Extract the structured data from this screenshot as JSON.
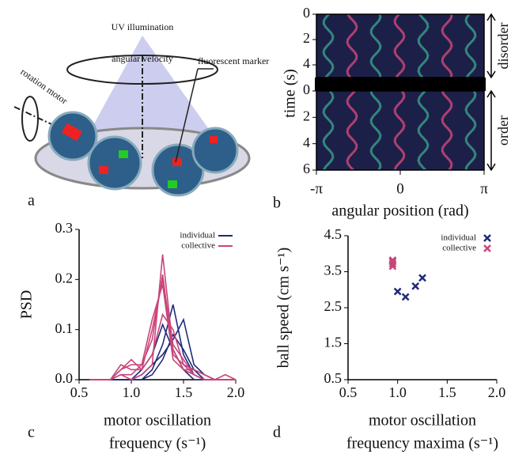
{
  "illustration": {
    "panel_label": "a",
    "texts": [
      "UV illumination",
      "angular velocity",
      "fluorescent marker",
      "rotation motor"
    ]
  },
  "chart_data": [
    {
      "type": "heatmap",
      "panel_label": "b",
      "xlabel": "angular position (rad)",
      "ylabel": "time (s)",
      "xlim": [
        -3.1416,
        3.1416
      ],
      "xticks": [
        {
          "value": -3.1416,
          "label": "-π"
        },
        0,
        {
          "value": 3.1416,
          "label": "π"
        }
      ],
      "panels": [
        {
          "label": "disorder",
          "ylim": [
            0,
            5
          ],
          "yticks": [
            0,
            2,
            4
          ]
        },
        {
          "label": "order",
          "ylim": [
            0,
            6
          ],
          "yticks": [
            0,
            2,
            4,
            6
          ]
        }
      ]
    },
    {
      "type": "line",
      "panel_label": "c",
      "ylabel": "PSD",
      "xlabel": [
        "motor oscillation",
        "frequency (s⁻¹)"
      ],
      "xlim": [
        0.5,
        2.0
      ],
      "xticks": [
        0.5,
        {
          "value": 1,
          "label": "1.0"
        },
        1.5,
        {
          "value": 2,
          "label": "2.0"
        }
      ],
      "ylim": [
        0,
        0.3
      ],
      "yticks": [
        {
          "value": 0,
          "label": "0.0"
        },
        0.1,
        0.2,
        0.3
      ],
      "legend": "upper right",
      "x": [
        0.6,
        0.7,
        0.8,
        0.9,
        1.0,
        1.1,
        1.2,
        1.3,
        1.4,
        1.5,
        1.6,
        1.7,
        1.8,
        1.9,
        2.0
      ],
      "series": [
        {
          "name": "individual",
          "color": "#1f2a7a",
          "values": [
            [
              0,
              0,
              0,
              0,
              0,
              0,
              0.02,
              0.07,
              0.15,
              0.05,
              0.01,
              0,
              0,
              0,
              0
            ],
            [
              0,
              0,
              0,
              0,
              0,
              0.01,
              0.03,
              0.05,
              0.08,
              0.12,
              0.03,
              0.01,
              0,
              0,
              0
            ],
            [
              0,
              0,
              0,
              0,
              0,
              0.02,
              0.05,
              0.11,
              0.06,
              0.02,
              0,
              0,
              0,
              0,
              0
            ],
            [
              0,
              0,
              0,
              0,
              0,
              0,
              0.01,
              0.04,
              0.09,
              0.06,
              0.02,
              0,
              0,
              0,
              0
            ]
          ]
        },
        {
          "name": "collective",
          "color": "#c9457a",
          "values": [
            [
              0,
              0,
              0,
              0.01,
              0,
              0.01,
              0.03,
              0.25,
              0.06,
              0.02,
              0.01,
              0,
              0,
              0,
              0
            ],
            [
              0,
              0,
              0,
              0.02,
              0.03,
              0.03,
              0.08,
              0.21,
              0.05,
              0.03,
              0.02,
              0.01,
              0,
              0,
              0
            ],
            [
              0,
              0,
              0,
              0.03,
              0.02,
              0.02,
              0.1,
              0.2,
              0.07,
              0.04,
              0.01,
              0,
              0,
              0.01,
              0
            ],
            [
              0,
              0,
              0,
              0.01,
              0.01,
              0.03,
              0.12,
              0.19,
              0.04,
              0.02,
              0.02,
              0.01,
              0,
              0,
              0
            ],
            [
              0,
              0,
              0,
              0.02,
              0.04,
              0.02,
              0.05,
              0.13,
              0.1,
              0.03,
              0.01,
              0,
              0,
              0,
              0
            ]
          ]
        }
      ]
    },
    {
      "type": "scatter",
      "panel_label": "d",
      "ylabel": "ball speed (cm s⁻¹)",
      "xlabel": [
        "motor oscillation",
        "frequency maxima (s⁻¹)"
      ],
      "xlim": [
        0.5,
        2.0
      ],
      "xticks": [
        0.5,
        {
          "value": 1,
          "label": "1.0"
        },
        1.5,
        {
          "value": 2,
          "label": "2.0"
        }
      ],
      "ylim": [
        0.5,
        4.5
      ],
      "yticks": [
        0.5,
        1.5,
        2.5,
        3.5,
        4.5
      ],
      "legend": "upper right",
      "series": [
        {
          "name": "individual",
          "color": "#1f2a7a",
          "x": [
            1.0,
            1.08,
            1.18,
            1.25
          ],
          "values": [
            2.95,
            2.8,
            3.1,
            3.33
          ]
        },
        {
          "name": "collective",
          "color": "#c9457a",
          "x": [
            0.95,
            0.95,
            0.95,
            0.95
          ],
          "values": [
            3.65,
            3.72,
            3.78,
            3.82
          ]
        }
      ]
    }
  ]
}
